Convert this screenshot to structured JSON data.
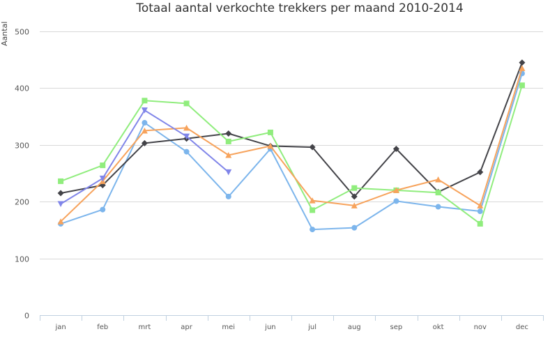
{
  "chart_data": {
    "type": "line",
    "title": "Totaal aantal verkochte trekkers per maand 2010-2014",
    "ylabel": "Aantal",
    "xlabel": "",
    "categories": [
      "jan",
      "feb",
      "mrt",
      "apr",
      "mei",
      "jun",
      "jul",
      "aug",
      "sep",
      "okt",
      "nov",
      "dec"
    ],
    "ylim": [
      0,
      500
    ],
    "yticks": [
      0,
      100,
      200,
      300,
      400,
      500
    ],
    "grid": true,
    "series": [
      {
        "color": "#7cb5ec",
        "marker": "circle",
        "values": [
          161,
          186,
          339,
          288,
          209,
          293,
          151,
          154,
          201,
          191,
          183,
          426
        ]
      },
      {
        "color": "#434348",
        "marker": "diamond",
        "values": [
          215,
          229,
          303,
          311,
          320,
          298,
          296,
          209,
          293,
          217,
          252,
          445
        ]
      },
      {
        "color": "#90ed7d",
        "marker": "square",
        "values": [
          236,
          264,
          378,
          373,
          306,
          322,
          185,
          224,
          220,
          216,
          161,
          405
        ]
      },
      {
        "color": "#f7a35c",
        "marker": "triangle",
        "values": [
          165,
          236,
          325,
          330,
          282,
          298,
          202,
          193,
          220,
          239,
          193,
          435
        ]
      },
      {
        "color": "#8085e9",
        "marker": "triangle-down",
        "values": [
          196,
          241,
          361,
          315,
          252,
          null,
          null,
          null,
          null,
          null,
          null,
          null
        ]
      }
    ]
  }
}
